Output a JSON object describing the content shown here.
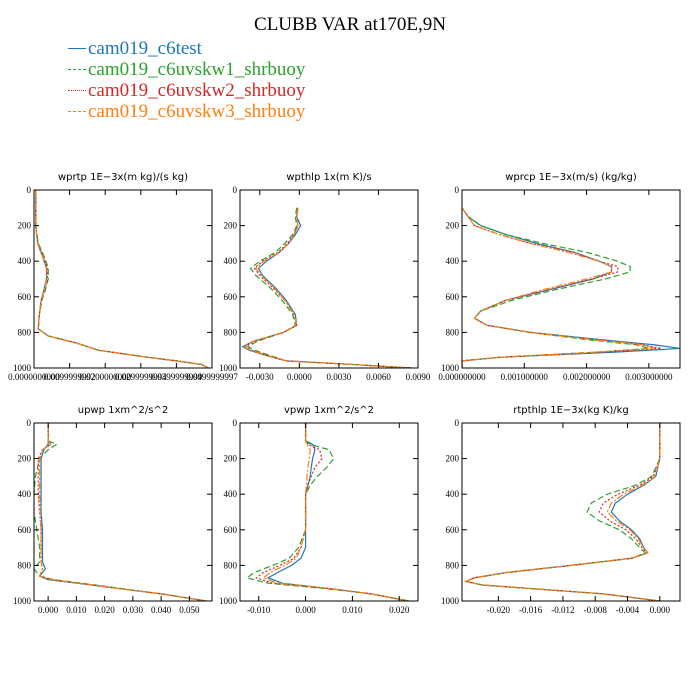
{
  "title": "CLUBB VAR at170E,9N",
  "legend": [
    {
      "label": "cam019_c6test",
      "color": "#1f77b4",
      "dash": "solid"
    },
    {
      "label": "cam019_c6uvskw1_shrbuoy",
      "color": "#2ca02c",
      "dash": "dashed"
    },
    {
      "label": "cam019_c6uvskw2_shrbuoy",
      "color": "#d62728",
      "dash": "dotted"
    },
    {
      "label": "cam019_c6uvskw3_shrbuoy",
      "color": "#ff7f0e",
      "dash": "dashdot"
    }
  ],
  "chart_data": [
    {
      "type": "line",
      "title": "wprtp  1E−3x(m kg)/(s kg)",
      "xlim": [
        0,
        0.04999999997
      ],
      "ylim": [
        1000,
        0
      ],
      "xticks": [
        0,
        0.00999999992,
        0.02,
        0.02999999994,
        0.03999999999,
        0.04999999997
      ],
      "xtick_labels": [
        "0.0000000000",
        "0.0099999992",
        "0.0200000000",
        "0.0299999994",
        "0.0399999999",
        "0.0499999997"
      ],
      "yticks": [
        0,
        200,
        400,
        600,
        800,
        1000
      ],
      "ytick_labels": [
        "0",
        "200",
        "400",
        "600",
        "800",
        "1000"
      ],
      "y": [
        0,
        100,
        200,
        300,
        380,
        440,
        500,
        560,
        620,
        700,
        780,
        820,
        860,
        900,
        940,
        960,
        980,
        1000
      ],
      "series": [
        {
          "name": "cam019_c6test",
          "values": [
            0.0005,
            0.0005,
            0.0005,
            0.001,
            0.0025,
            0.0035,
            0.0035,
            0.0028,
            0.002,
            0.0015,
            0.0012,
            0.004,
            0.012,
            0.018,
            0.032,
            0.04,
            0.047,
            0.049
          ]
        },
        {
          "name": "cam019_c6uvskw1_shrbuoy",
          "values": [
            0.0005,
            0.0005,
            0.0005,
            0.0012,
            0.003,
            0.004,
            0.004,
            0.0032,
            0.0022,
            0.0015,
            0.0012,
            0.004,
            0.012,
            0.018,
            0.032,
            0.04,
            0.047,
            0.049
          ]
        },
        {
          "name": "cam019_c6uvskw2_shrbuoy",
          "values": [
            0.0005,
            0.0005,
            0.0005,
            0.0011,
            0.0028,
            0.0038,
            0.0038,
            0.003,
            0.0021,
            0.0015,
            0.0012,
            0.004,
            0.012,
            0.018,
            0.032,
            0.04,
            0.047,
            0.049
          ]
        },
        {
          "name": "cam019_c6uvskw3_shrbuoy",
          "values": [
            0.0005,
            0.0005,
            0.0005,
            0.001,
            0.0026,
            0.0036,
            0.0036,
            0.0029,
            0.002,
            0.0015,
            0.0012,
            0.004,
            0.012,
            0.018,
            0.032,
            0.04,
            0.047,
            0.049
          ]
        }
      ]
    },
    {
      "type": "line",
      "title": "wpthlp  1x(m K)/s",
      "xlim": [
        -0.0045,
        0.009
      ],
      "ylim": [
        1000,
        0
      ],
      "xticks": [
        -0.003,
        0,
        0.003,
        0.006,
        0.009
      ],
      "xtick_labels": [
        "-0.0030",
        "0.0000",
        "0.0030",
        "0.0060",
        "0.0090"
      ],
      "yticks": [
        0,
        200,
        400,
        600,
        800,
        1000
      ],
      "ytick_labels": [
        "0",
        "200",
        "400",
        "600",
        "800",
        "1000"
      ],
      "y": [
        100,
        150,
        200,
        250,
        300,
        350,
        400,
        440,
        480,
        550,
        620,
        700,
        760,
        800,
        850,
        880,
        900,
        930,
        960,
        980,
        1000
      ],
      "series": [
        {
          "name": "cam019_c6test",
          "values": [
            -0.0001,
            -0.0002,
            0.0001,
            -0.0003,
            -0.0008,
            -0.0015,
            -0.0025,
            -0.0031,
            -0.0028,
            -0.0018,
            -0.001,
            -0.0003,
            -0.0002,
            -0.0012,
            -0.0035,
            -0.0043,
            -0.0038,
            -0.0025,
            -0.001,
            0.004,
            0.0085
          ]
        },
        {
          "name": "cam019_c6uvskw1_shrbuoy",
          "values": [
            -0.0002,
            -0.0003,
            -0.0002,
            -0.0005,
            -0.0011,
            -0.0018,
            -0.003,
            -0.0037,
            -0.0033,
            -0.0022,
            -0.0013,
            -0.0005,
            -0.0003,
            -0.0012,
            -0.0032,
            -0.0039,
            -0.0034,
            -0.0022,
            -0.001,
            0.004,
            0.0085
          ]
        },
        {
          "name": "cam019_c6uvskw2_shrbuoy",
          "values": [
            -0.0001,
            -0.0002,
            -0.0001,
            -0.0004,
            -0.0009,
            -0.0016,
            -0.0028,
            -0.0034,
            -0.003,
            -0.002,
            -0.0011,
            -0.0004,
            -0.0002,
            -0.0012,
            -0.0034,
            -0.0041,
            -0.0036,
            -0.0024,
            -0.001,
            0.004,
            0.0085
          ]
        },
        {
          "name": "cam019_c6uvskw3_shrbuoy",
          "values": [
            -0.0001,
            -0.0002,
            -0.0001,
            -0.0004,
            -0.0008,
            -0.0015,
            -0.0027,
            -0.0033,
            -0.0029,
            -0.0019,
            -0.0011,
            -0.0004,
            -0.0002,
            -0.0012,
            -0.0035,
            -0.0042,
            -0.0037,
            -0.0024,
            -0.001,
            0.004,
            0.0085
          ]
        }
      ]
    },
    {
      "type": "line",
      "title": "wprcp  1E−3x(m/s) (kg/kg)",
      "xlim": [
        0,
        0.0035
      ],
      "ylim": [
        1000,
        0
      ],
      "xticks": [
        0,
        0.001,
        0.002,
        0.003
      ],
      "xtick_labels": [
        "0.000000000",
        "0.001000000",
        "0.002000000",
        "0.003000000"
      ],
      "yticks": [
        0,
        200,
        400,
        600,
        800,
        1000
      ],
      "ytick_labels": [
        "0",
        "200",
        "400",
        "600",
        "800",
        "1000"
      ],
      "y": [
        100,
        150,
        200,
        250,
        300,
        350,
        400,
        430,
        460,
        500,
        560,
        620,
        680,
        720,
        760,
        800,
        840,
        870,
        890,
        910,
        940,
        960,
        1000
      ],
      "series": [
        {
          "name": "cam019_c6test",
          "values": [
            0,
            0.0001,
            0.0003,
            0.0007,
            0.0012,
            0.0018,
            0.0022,
            0.0024,
            0.0024,
            0.0021,
            0.0014,
            0.0007,
            0.0003,
            0.0002,
            0.0004,
            0.0011,
            0.0022,
            0.0031,
            0.0035,
            0.0025,
            0.0006,
            0,
            0
          ]
        },
        {
          "name": "cam019_c6uvskw1_shrbuoy",
          "values": [
            0,
            0.0001,
            0.0003,
            0.0007,
            0.0013,
            0.002,
            0.0025,
            0.0027,
            0.0027,
            0.0023,
            0.0015,
            0.0008,
            0.0003,
            0.0002,
            0.0004,
            0.0011,
            0.002,
            0.0028,
            0.003,
            0.0022,
            0.0006,
            0,
            0
          ]
        },
        {
          "name": "cam019_c6uvskw2_shrbuoy",
          "values": [
            0,
            0.0001,
            0.0002,
            0.0006,
            0.0011,
            0.0018,
            0.0022,
            0.0025,
            0.0025,
            0.0021,
            0.0014,
            0.0007,
            0.0003,
            0.0002,
            0.0004,
            0.0011,
            0.0021,
            0.0029,
            0.0032,
            0.0023,
            0.0006,
            0,
            0
          ]
        },
        {
          "name": "cam019_c6uvskw3_shrbuoy",
          "values": [
            0,
            0.0001,
            0.0002,
            0.0006,
            0.0011,
            0.0017,
            0.0022,
            0.0024,
            0.0024,
            0.002,
            0.0013,
            0.0007,
            0.0003,
            0.0002,
            0.0004,
            0.0011,
            0.0021,
            0.0029,
            0.0031,
            0.0022,
            0.0006,
            0,
            0
          ]
        }
      ]
    },
    {
      "type": "line",
      "title": "upwp  1xm^2/s^2",
      "xlim": [
        -0.005,
        0.058
      ],
      "ylim": [
        1000,
        0
      ],
      "xticks": [
        0,
        0.01,
        0.02,
        0.03,
        0.04,
        0.05
      ],
      "xtick_labels": [
        "0.000",
        "0.010",
        "0.020",
        "0.030",
        "0.040",
        "0.050"
      ],
      "yticks": [
        0,
        200,
        400,
        600,
        800,
        1000
      ],
      "ytick_labels": [
        "0",
        "200",
        "400",
        "600",
        "800",
        "1000"
      ],
      "y": [
        0,
        100,
        120,
        150,
        200,
        300,
        400,
        500,
        600,
        700,
        780,
        820,
        860,
        880,
        900,
        930,
        960,
        1000
      ],
      "series": [
        {
          "name": "cam019_c6test",
          "values": [
            0,
            0,
            0,
            -0.0015,
            -0.0025,
            -0.0025,
            -0.0025,
            -0.0025,
            -0.002,
            -0.002,
            -0.002,
            -0.001,
            -0.003,
            0,
            0.01,
            0.025,
            0.04,
            0.056
          ]
        },
        {
          "name": "cam019_c6uvskw1_shrbuoy",
          "values": [
            0,
            0,
            0.003,
            0,
            -0.003,
            -0.0045,
            -0.005,
            -0.005,
            -0.004,
            -0.003,
            -0.003,
            -0.005,
            -0.003,
            0.002,
            0.012,
            0.026,
            0.04,
            0.056
          ]
        },
        {
          "name": "cam019_c6uvskw2_shrbuoy",
          "values": [
            0,
            0,
            0.001,
            -0.002,
            -0.0035,
            -0.0035,
            -0.0035,
            -0.003,
            -0.0025,
            -0.0025,
            -0.0025,
            -0.002,
            -0.003,
            0.001,
            0.011,
            0.025,
            0.04,
            0.056
          ]
        },
        {
          "name": "cam019_c6uvskw3_shrbuoy",
          "values": [
            0,
            0,
            0.001,
            -0.002,
            -0.003,
            -0.003,
            -0.003,
            -0.0028,
            -0.0025,
            -0.0025,
            -0.0025,
            -0.002,
            -0.003,
            0.001,
            0.011,
            0.025,
            0.04,
            0.056
          ]
        }
      ]
    },
    {
      "type": "line",
      "title": "vpwp  1xm^2/s^2",
      "xlim": [
        -0.014,
        0.024
      ],
      "ylim": [
        1000,
        0
      ],
      "xticks": [
        -0.01,
        0,
        0.01,
        0.02
      ],
      "xtick_labels": [
        "-0.010",
        "0.000",
        "0.010",
        "0.020"
      ],
      "yticks": [
        0,
        200,
        400,
        600,
        800,
        1000
      ],
      "ytick_labels": [
        "0",
        "200",
        "400",
        "600",
        "800",
        "1000"
      ],
      "y": [
        0,
        100,
        120,
        150,
        200,
        250,
        300,
        350,
        400,
        500,
        600,
        700,
        760,
        800,
        840,
        870,
        900,
        930,
        960,
        1000
      ],
      "series": [
        {
          "name": "cam019_c6test",
          "values": [
            0,
            0,
            0.0015,
            0.002,
            0.0015,
            0.0012,
            0.001,
            0.0005,
            0,
            0,
            0,
            0,
            -0.001,
            -0.003,
            -0.006,
            -0.008,
            -0.005,
            0.005,
            0.014,
            0.022
          ]
        },
        {
          "name": "cam019_c6uvskw1_shrbuoy",
          "values": [
            0,
            0,
            0.001,
            0.005,
            0.006,
            0.0045,
            0.0025,
            0.001,
            0,
            0,
            0,
            -0.0015,
            -0.0035,
            -0.007,
            -0.011,
            -0.0125,
            -0.008,
            0.004,
            0.014,
            0.022
          ]
        },
        {
          "name": "cam019_c6uvskw2_shrbuoy",
          "values": [
            0,
            0,
            0.0005,
            0.003,
            0.0035,
            0.002,
            0.0012,
            0.0005,
            0,
            0,
            0,
            -0.001,
            -0.0025,
            -0.0055,
            -0.009,
            -0.0105,
            -0.007,
            0.005,
            0.014,
            0.022
          ]
        },
        {
          "name": "cam019_c6uvskw3_shrbuoy",
          "values": [
            0,
            0,
            0.0003,
            0.001,
            0.0008,
            0.0005,
            0.0003,
            0.0002,
            0,
            0,
            0,
            -0.001,
            -0.002,
            -0.0045,
            -0.0075,
            -0.009,
            -0.006,
            0.005,
            0.014,
            0.022
          ]
        }
      ]
    },
    {
      "type": "line",
      "title": "rtpthlp  1E−3x(kg K)/kg",
      "xlim": [
        -0.0245,
        0.0025
      ],
      "ylim": [
        1000,
        0
      ],
      "xticks": [
        -0.02,
        -0.016,
        -0.012,
        -0.008,
        -0.004,
        0
      ],
      "xtick_labels": [
        "-0.020",
        "-0.016",
        "-0.012",
        "-0.008",
        "-0.004",
        "0.000"
      ],
      "yticks": [
        0,
        200,
        400,
        600,
        800,
        1000
      ],
      "ytick_labels": [
        "0",
        "200",
        "400",
        "600",
        "800",
        "1000"
      ],
      "y": [
        0,
        200,
        300,
        350,
        400,
        450,
        500,
        550,
        600,
        650,
        700,
        730,
        760,
        800,
        840,
        870,
        890,
        910,
        930,
        960,
        1000
      ],
      "series": [
        {
          "name": "cam019_c6test",
          "values": [
            0,
            0,
            -0.0005,
            -0.002,
            -0.004,
            -0.0055,
            -0.006,
            -0.005,
            -0.0035,
            -0.0025,
            -0.002,
            -0.0015,
            -0.0035,
            -0.011,
            -0.019,
            -0.023,
            -0.024,
            -0.022,
            -0.016,
            -0.007,
            0
          ]
        },
        {
          "name": "cam019_c6uvskw1_shrbuoy",
          "values": [
            0,
            0,
            -0.001,
            -0.003,
            -0.0065,
            -0.0085,
            -0.009,
            -0.0075,
            -0.005,
            -0.0035,
            -0.0025,
            -0.0018,
            -0.0035,
            -0.011,
            -0.019,
            -0.023,
            -0.024,
            -0.022,
            -0.016,
            -0.007,
            0
          ]
        },
        {
          "name": "cam019_c6uvskw2_shrbuoy",
          "values": [
            0,
            0,
            -0.0008,
            -0.0025,
            -0.0052,
            -0.007,
            -0.0075,
            -0.0062,
            -0.0042,
            -0.003,
            -0.0022,
            -0.0016,
            -0.0035,
            -0.011,
            -0.019,
            -0.023,
            -0.024,
            -0.022,
            -0.016,
            -0.007,
            0
          ]
        },
        {
          "name": "cam019_c6uvskw3_shrbuoy",
          "values": [
            0,
            0,
            -0.0006,
            -0.0022,
            -0.0045,
            -0.006,
            -0.0065,
            -0.0054,
            -0.0037,
            -0.0027,
            -0.002,
            -0.0015,
            -0.0035,
            -0.011,
            -0.019,
            -0.023,
            -0.024,
            -0.022,
            -0.016,
            -0.007,
            0
          ]
        }
      ]
    }
  ]
}
